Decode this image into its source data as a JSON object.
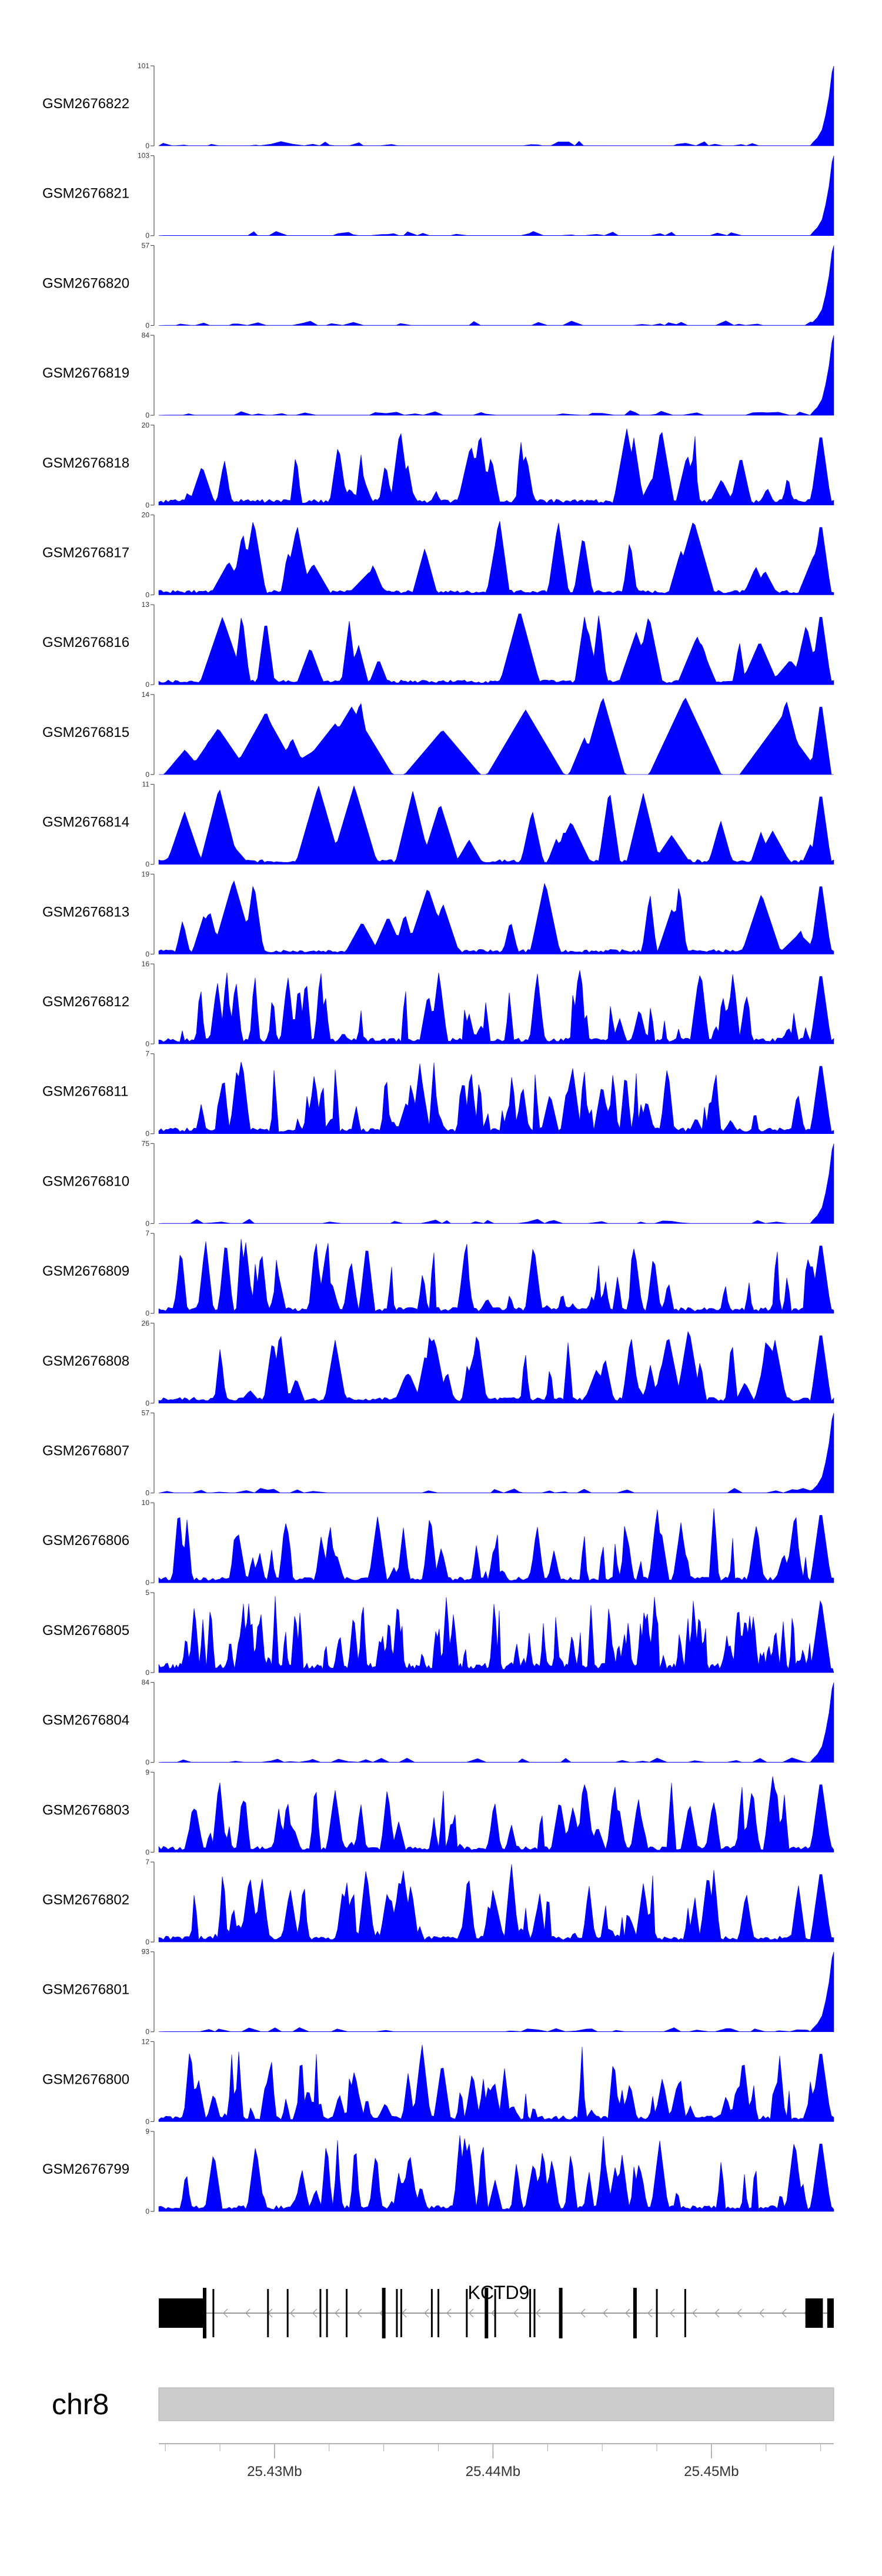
{
  "chart_data": {
    "type": "area",
    "title": "",
    "xlabel": "",
    "ylabel": "",
    "chromosome": "chr8",
    "xlim": [
      25.4247,
      25.4556
    ],
    "x_unit": "Mb",
    "x_ticks": [
      25.43,
      25.44,
      25.45
    ],
    "x_tick_labels": [
      "25.43Mb",
      "25.44Mb",
      "25.45Mb"
    ],
    "fill_color": "#0000ff",
    "gene": {
      "name": "KCTD9",
      "strand": "-",
      "color": "#000000",
      "start": 25.4247,
      "end": 25.4556,
      "utr": [
        [
          25.4247,
          25.4268
        ],
        [
          25.4543,
          25.4551
        ],
        [
          25.4553,
          25.4556
        ]
      ],
      "exons": [
        25.4272,
        25.4297,
        25.4306,
        25.4321,
        25.4324,
        25.4333,
        25.4356,
        25.4358,
        25.4372,
        25.4375,
        25.4388,
        25.4401,
        25.4417,
        25.4419,
        25.4475,
        25.4488
      ],
      "thick_exons": [
        25.4268,
        25.435,
        25.4397,
        25.4431,
        25.4465
      ]
    },
    "tracks": [
      {
        "name": "GSM2676822",
        "ymax": 101,
        "pattern": "tail",
        "seed": 22
      },
      {
        "name": "GSM2676821",
        "ymax": 103,
        "pattern": "tail",
        "seed": 21
      },
      {
        "name": "GSM2676820",
        "ymax": 57,
        "pattern": "tail",
        "seed": 20
      },
      {
        "name": "GSM2676819",
        "ymax": 84,
        "pattern": "tail",
        "seed": 19
      },
      {
        "name": "GSM2676818",
        "ymax": 20,
        "pattern": "spiky",
        "seed": 18
      },
      {
        "name": "GSM2676817",
        "ymax": 20,
        "pattern": "sparse",
        "seed": 17
      },
      {
        "name": "GSM2676816",
        "ymax": 13,
        "pattern": "sparse",
        "seed": 16
      },
      {
        "name": "GSM2676815",
        "ymax": 14,
        "pattern": "triangles",
        "seed": 15
      },
      {
        "name": "GSM2676814",
        "ymax": 11,
        "pattern": "sparse",
        "seed": 14
      },
      {
        "name": "GSM2676813",
        "ymax": 19,
        "pattern": "sparse",
        "seed": 13
      },
      {
        "name": "GSM2676812",
        "ymax": 16,
        "pattern": "dense",
        "seed": 12
      },
      {
        "name": "GSM2676811",
        "ymax": 7,
        "pattern": "dense",
        "seed": 11
      },
      {
        "name": "GSM2676810",
        "ymax": 75,
        "pattern": "tail",
        "seed": 10
      },
      {
        "name": "GSM2676809",
        "ymax": 7,
        "pattern": "dense",
        "seed": 9
      },
      {
        "name": "GSM2676808",
        "ymax": 26,
        "pattern": "spiky",
        "seed": 8
      },
      {
        "name": "GSM2676807",
        "ymax": 57,
        "pattern": "tail",
        "seed": 7
      },
      {
        "name": "GSM2676806",
        "ymax": 10,
        "pattern": "dense",
        "seed": 6
      },
      {
        "name": "GSM2676805",
        "ymax": 5,
        "pattern": "verydense",
        "seed": 5
      },
      {
        "name": "GSM2676804",
        "ymax": 84,
        "pattern": "tail",
        "seed": 4
      },
      {
        "name": "GSM2676803",
        "ymax": 9,
        "pattern": "dense",
        "seed": 3
      },
      {
        "name": "GSM2676802",
        "ymax": 7,
        "pattern": "dense",
        "seed": 2
      },
      {
        "name": "GSM2676801",
        "ymax": 93,
        "pattern": "tail",
        "seed": 1
      },
      {
        "name": "GSM2676800",
        "ymax": 12,
        "pattern": "dense",
        "seed": 100
      },
      {
        "name": "GSM2676799",
        "ymax": 9,
        "pattern": "dense",
        "seed": 99
      }
    ]
  }
}
